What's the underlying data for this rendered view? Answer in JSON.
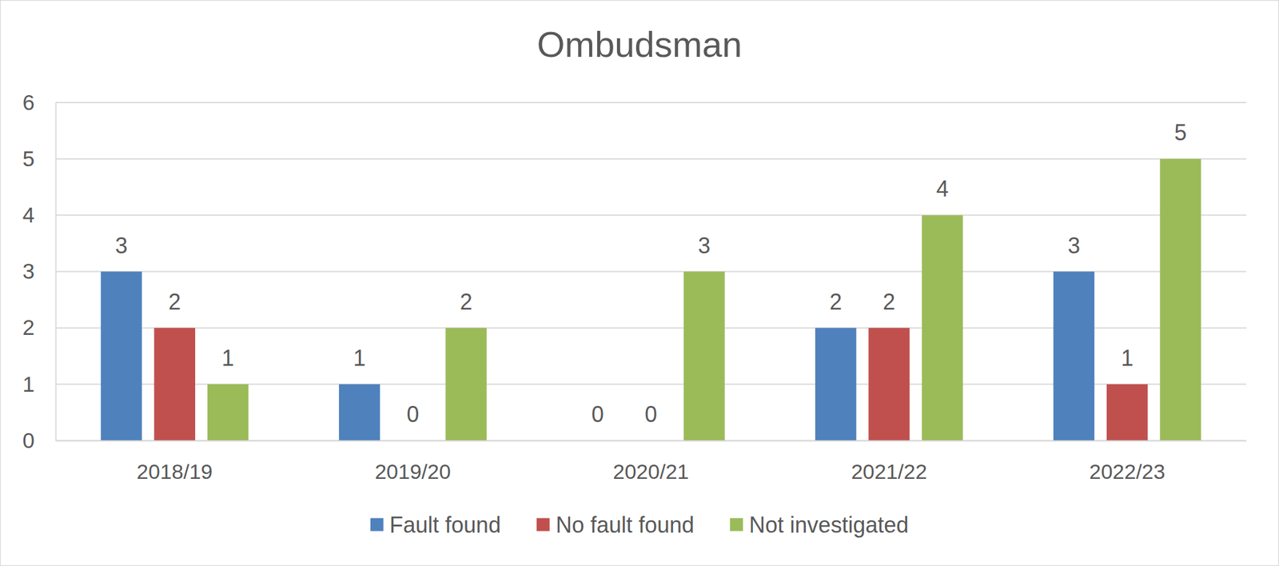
{
  "chart_data": {
    "type": "bar",
    "title": "Ombudsman",
    "categories": [
      "2018/19",
      "2019/20",
      "2020/21",
      "2021/22",
      "2022/23"
    ],
    "series": [
      {
        "name": "Fault found",
        "color": "#4f81bd",
        "values": [
          3,
          1,
          0,
          2,
          3
        ]
      },
      {
        "name": "No fault found",
        "color": "#c0504d",
        "values": [
          2,
          0,
          0,
          2,
          1
        ]
      },
      {
        "name": "Not investigated",
        "color": "#9bbb59",
        "values": [
          1,
          2,
          3,
          4,
          5
        ]
      }
    ],
    "ylim": [
      0,
      6
    ],
    "yticks": [
      0,
      1,
      2,
      3,
      4,
      5,
      6
    ],
    "grid": true,
    "legend": "bottom",
    "data_labels": true
  }
}
